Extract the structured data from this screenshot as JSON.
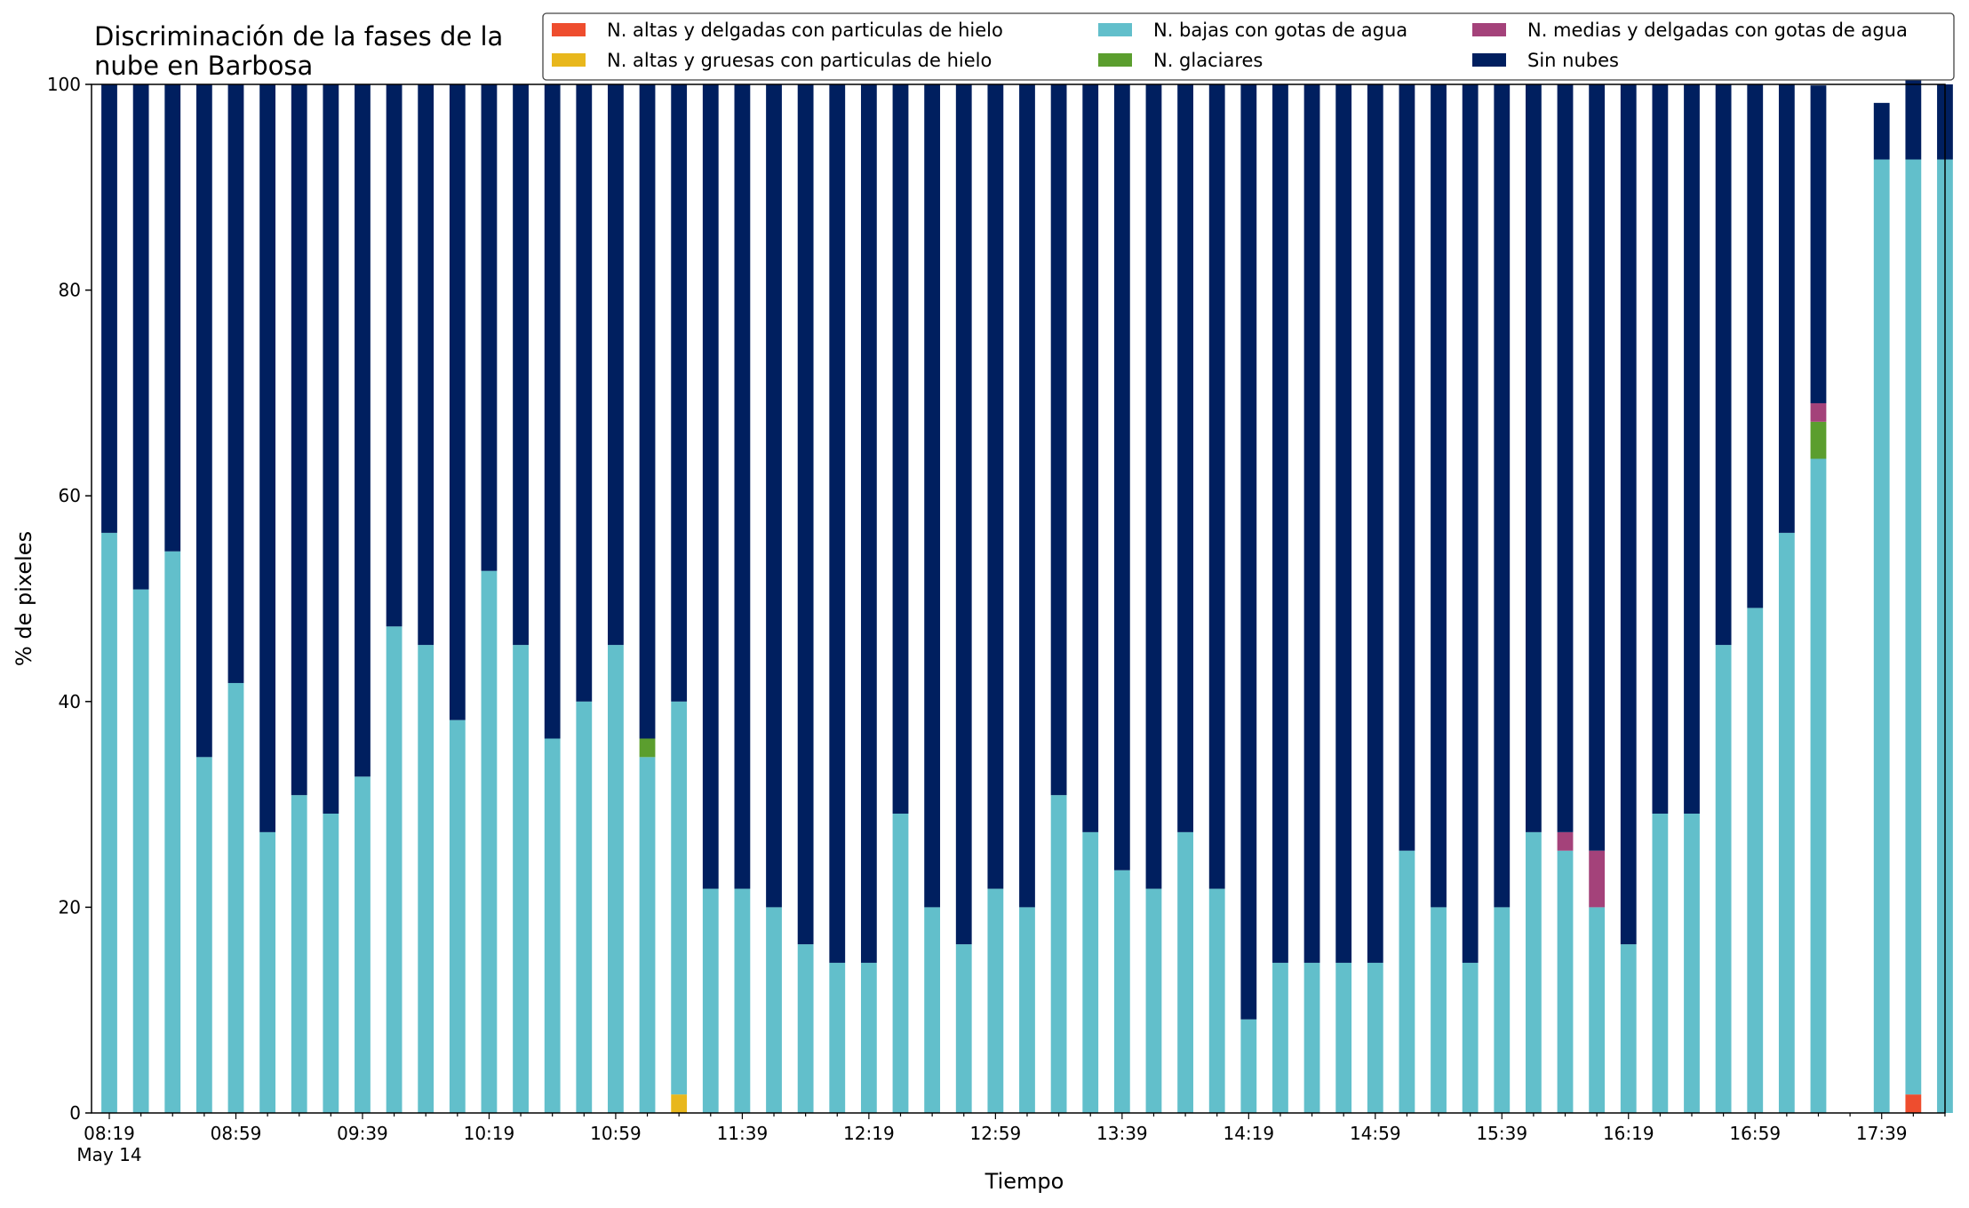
{
  "chart_data": {
    "type": "bar",
    "stacked": true,
    "title": "Discriminación de la fases de la nube en Barbosa",
    "xlabel": "Tiempo",
    "ylabel": "% de pixeles",
    "ylim": [
      0,
      100
    ],
    "yticks": [
      0,
      20,
      40,
      60,
      80,
      100
    ],
    "grid": false,
    "legend_position": "top-right",
    "x_start": "08:19",
    "x_step_minutes": 10,
    "x_tick_labels": [
      "08:19",
      "08:59",
      "09:39",
      "10:19",
      "10:59",
      "11:39",
      "12:19",
      "12:59",
      "13:39",
      "14:19",
      "14:59",
      "15:39",
      "16:19",
      "16:59",
      "17:39"
    ],
    "x_date_label": "May 14",
    "series": [
      {
        "name": "N. altas y delgadas con particulas de hielo",
        "color": "#ee4d2e",
        "values": [
          0,
          0,
          0,
          0,
          0,
          0,
          0,
          0,
          0,
          0,
          0,
          0,
          0,
          0,
          0,
          0,
          0,
          0,
          0,
          0,
          0,
          0,
          0,
          0,
          0,
          0,
          0,
          0,
          0,
          0,
          0,
          0,
          0,
          0,
          0,
          0,
          0,
          0,
          0,
          0,
          0,
          0,
          0,
          0,
          0,
          0,
          0,
          0,
          0,
          0,
          0,
          0,
          0,
          0,
          0,
          0,
          0,
          1.8,
          0,
          0
        ]
      },
      {
        "name": "N. altas y gruesas con particulas de hielo",
        "color": "#e8b71c",
        "values": [
          0,
          0,
          0,
          0,
          0,
          0,
          0,
          0,
          0,
          0,
          0,
          0,
          0,
          0,
          0,
          0,
          0,
          0,
          1.8,
          0,
          0,
          0,
          0,
          0,
          0,
          0,
          0,
          0,
          0,
          0,
          0,
          0,
          0,
          0,
          0,
          0,
          0,
          0,
          0,
          0,
          0,
          0,
          0,
          0,
          0,
          0,
          0,
          0,
          0,
          0,
          0,
          0,
          0,
          0,
          0,
          0,
          0,
          0,
          0,
          0
        ]
      },
      {
        "name": "N. bajas con gotas de agua",
        "color": "#62bfcb",
        "values": [
          56.4,
          50.9,
          54.6,
          34.6,
          41.8,
          27.3,
          30.9,
          29.1,
          32.7,
          47.3,
          45.5,
          38.2,
          52.7,
          45.5,
          36.4,
          40.0,
          45.5,
          34.6,
          38.2,
          21.8,
          21.8,
          20.0,
          16.4,
          14.6,
          14.6,
          29.1,
          20.0,
          16.4,
          21.8,
          20.0,
          30.9,
          27.3,
          23.6,
          21.8,
          27.3,
          21.8,
          9.1,
          14.6,
          14.6,
          14.6,
          14.6,
          25.5,
          20.0,
          14.6,
          20.0,
          27.3,
          25.5,
          20.0,
          16.4,
          29.1,
          29.1,
          45.5,
          49.1,
          56.4,
          63.6,
          0,
          92.7,
          90.9,
          92.7,
          0
        ]
      },
      {
        "name": "N. glaciares",
        "color": "#5b9e2e",
        "values": [
          0,
          0,
          0,
          0,
          0,
          0,
          0,
          0,
          0,
          0,
          0,
          0,
          0,
          0,
          0,
          0,
          0,
          1.8,
          0,
          0,
          0,
          0,
          0,
          0,
          0,
          0,
          0,
          0,
          0,
          0,
          0,
          0,
          0,
          0,
          0,
          0,
          0,
          0,
          0,
          0,
          0,
          0,
          0,
          0,
          0,
          0,
          0,
          0,
          0,
          0,
          0,
          0,
          0,
          0,
          3.6,
          0,
          0,
          0,
          0,
          0
        ]
      },
      {
        "name": "N. medias y delgadas con gotas de agua",
        "color": "#a4427a",
        "values": [
          0,
          0,
          0,
          0,
          0,
          0,
          0,
          0,
          0,
          0,
          0,
          0,
          0,
          0,
          0,
          0,
          0,
          0,
          0,
          0,
          0,
          0,
          0,
          0,
          0,
          0,
          0,
          0,
          0,
          0,
          0,
          0,
          0,
          0,
          0,
          0,
          0,
          0,
          0,
          0,
          0,
          0,
          0,
          0,
          0,
          0,
          1.8,
          5.5,
          0,
          0,
          0,
          0,
          0,
          0,
          1.8,
          0,
          0,
          0,
          0,
          0
        ]
      },
      {
        "name": "Sin nubes",
        "color": "#001f5f",
        "values": [
          43.6,
          49.1,
          45.4,
          65.4,
          58.2,
          72.7,
          69.1,
          70.9,
          67.3,
          52.7,
          54.5,
          61.8,
          47.3,
          54.5,
          63.6,
          60.0,
          54.5,
          63.6,
          60.0,
          78.2,
          78.2,
          80.0,
          83.6,
          85.4,
          85.4,
          70.9,
          80.0,
          83.6,
          78.2,
          80.0,
          69.1,
          72.7,
          76.4,
          78.2,
          72.7,
          78.2,
          90.9,
          85.4,
          85.4,
          85.4,
          85.4,
          74.5,
          80.0,
          85.4,
          80.0,
          72.7,
          72.7,
          74.5,
          83.6,
          70.9,
          70.9,
          54.5,
          50.9,
          43.6,
          30.9,
          0,
          5.5,
          9.1,
          7.3,
          0
        ]
      }
    ]
  }
}
